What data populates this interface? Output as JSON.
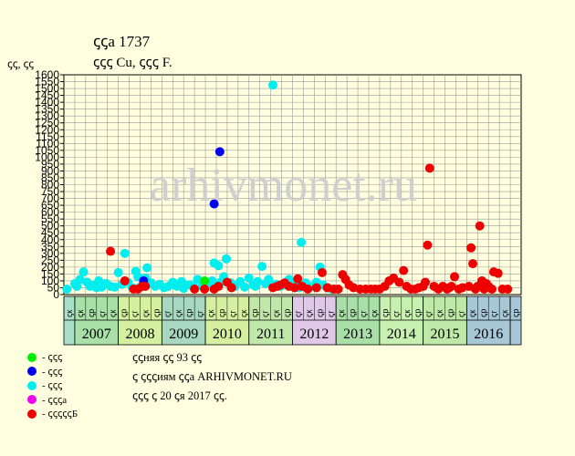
{
  "header": {
    "title": "ꞔꞔа 1737",
    "subtitle": "ꞔꞔꞔ Cu, ꞔꞔꞔ F.",
    "ylabel": "ꞔꞔ, ꞔꞔ"
  },
  "colors": {
    "background": "#ffffe0",
    "plot_background": "#ffffe0",
    "grid": "#999999",
    "watermark": "#cfcfcf"
  },
  "watermark": "arhivmonet.ru",
  "legend": [
    {
      "label": "- ꞔꞔꞔ",
      "color": "#00ee00"
    },
    {
      "label": "- ꞔꞔꞔ",
      "color": "#0000ee"
    },
    {
      "label": "- ꞔꞔꞔ",
      "color": "#00eeee"
    },
    {
      "label": "- ꞔꞔꞔа",
      "color": "#ee00ee"
    },
    {
      "label": "- ꞔꞔꞔꞔꞔБ",
      "color": "#ee0000"
    }
  ],
  "notes": [
    "ꞔꞔняя ꞔꞔ 93 ꞔꞔ",
    "ꞔ ꞔꞔꞔиям ꞔꞔа ARHIVMONET.RU",
    "ꞔꞔꞔ ꞔ 20 ꞔя 2017 ꞔꞔ."
  ],
  "chart_data": {
    "type": "scatter",
    "ylim": [
      0,
      1600
    ],
    "yticks": [
      0,
      50,
      100,
      150,
      200,
      250,
      300,
      350,
      400,
      450,
      500,
      550,
      600,
      650,
      700,
      750,
      800,
      850,
      900,
      950,
      1000,
      1050,
      1100,
      1150,
      1200,
      1250,
      1300,
      1350,
      1400,
      1450,
      1500,
      1550,
      1600
    ],
    "xlim": [
      2006.75,
      2017.25
    ],
    "quarter_labels": [
      "ꞔк",
      "ꞔк",
      "ꞔр",
      "ꞔг",
      "ꞔк",
      "ꞔр",
      "ꞔг",
      "ꞔк",
      "ꞔр",
      "ꞔг",
      "ꞔк",
      "ꞔр",
      "ꞔг",
      "ꞔк",
      "ꞔр",
      "ꞔг",
      "ꞔк",
      "ꞔр",
      "ꞔг",
      "ꞔк",
      "ꞔр",
      "ꞔг",
      "ꞔк",
      "ꞔр",
      "ꞔг",
      "ꞔк",
      "ꞔр",
      "ꞔг",
      "ꞔк",
      "ꞔр",
      "ꞔг",
      "ꞔк",
      "ꞔр",
      "ꞔг",
      "ꞔк",
      "ꞔр",
      "ꞔг",
      "ꞔк",
      "ꞔр",
      "ꞔг",
      "ꞔк",
      "ꞔр"
    ],
    "years": [
      {
        "label": "",
        "start": 2006.75,
        "end": 2007.0,
        "color": "#a8e0c8"
      },
      {
        "label": "2007",
        "start": 2007.0,
        "end": 2008.0,
        "color": "#a8e0a8"
      },
      {
        "label": "2008",
        "start": 2008.0,
        "end": 2009.0,
        "color": "#d4f0a0"
      },
      {
        "label": "2009",
        "start": 2009.0,
        "end": 2010.0,
        "color": "#a8d8c0"
      },
      {
        "label": "2010",
        "start": 2010.0,
        "end": 2011.0,
        "color": "#d4f0a0"
      },
      {
        "label": "2011",
        "start": 2011.0,
        "end": 2012.0,
        "color": "#c0e8a8"
      },
      {
        "label": "2012",
        "start": 2012.0,
        "end": 2013.0,
        "color": "#e0c8e8"
      },
      {
        "label": "2013",
        "start": 2013.0,
        "end": 2014.0,
        "color": "#a8e0a8"
      },
      {
        "label": "2014",
        "start": 2014.0,
        "end": 2015.0,
        "color": "#c8f0b0"
      },
      {
        "label": "2015",
        "start": 2015.0,
        "end": 2016.0,
        "color": "#c0e8a8"
      },
      {
        "label": "2016",
        "start": 2016.0,
        "end": 2017.0,
        "color": "#a8c8d8"
      },
      {
        "label": "",
        "start": 2017.0,
        "end": 2017.25,
        "color": "#a8c8d8"
      }
    ],
    "series": [
      {
        "color": "#00eeee",
        "points": [
          [
            2006.82,
            40
          ],
          [
            2007.0,
            80
          ],
          [
            2007.05,
            60
          ],
          [
            2007.12,
            110
          ],
          [
            2007.2,
            165
          ],
          [
            2007.28,
            90
          ],
          [
            2007.35,
            60
          ],
          [
            2007.45,
            70
          ],
          [
            2007.55,
            100
          ],
          [
            2007.62,
            55
          ],
          [
            2007.72,
            80
          ],
          [
            2007.82,
            60
          ],
          [
            2007.92,
            55
          ],
          [
            2008.0,
            160
          ],
          [
            2008.08,
            75
          ],
          [
            2008.15,
            300
          ],
          [
            2008.22,
            90
          ],
          [
            2008.32,
            50
          ],
          [
            2008.4,
            170
          ],
          [
            2008.45,
            130
          ],
          [
            2008.55,
            60
          ],
          [
            2008.63,
            120
          ],
          [
            2008.66,
            195
          ],
          [
            2008.75,
            85
          ],
          [
            2008.85,
            60
          ],
          [
            2008.95,
            75
          ],
          [
            2009.05,
            50
          ],
          [
            2009.15,
            60
          ],
          [
            2009.25,
            90
          ],
          [
            2009.35,
            60
          ],
          [
            2009.45,
            95
          ],
          [
            2009.55,
            70
          ],
          [
            2009.65,
            70
          ],
          [
            2009.72,
            55
          ],
          [
            2009.82,
            110
          ],
          [
            2009.92,
            60
          ],
          [
            2010.05,
            80
          ],
          [
            2010.15,
            100
          ],
          [
            2010.2,
            230
          ],
          [
            2010.3,
            210
          ],
          [
            2010.35,
            90
          ],
          [
            2010.42,
            130
          ],
          [
            2010.48,
            260
          ],
          [
            2010.58,
            85
          ],
          [
            2010.68,
            60
          ],
          [
            2010.8,
            95
          ],
          [
            2010.9,
            55
          ],
          [
            2011.0,
            120
          ],
          [
            2011.1,
            70
          ],
          [
            2011.2,
            95
          ],
          [
            2011.3,
            205
          ],
          [
            2011.38,
            80
          ],
          [
            2011.45,
            110
          ],
          [
            2011.55,
            1525
          ],
          [
            2011.62,
            75
          ],
          [
            2011.72,
            60
          ],
          [
            2011.82,
            70
          ],
          [
            2011.92,
            110
          ],
          [
            2012.05,
            80
          ],
          [
            2012.15,
            50
          ],
          [
            2012.2,
            380
          ],
          [
            2012.3,
            85
          ],
          [
            2012.45,
            60
          ],
          [
            2012.55,
            90
          ],
          [
            2012.63,
            200
          ],
          [
            2012.7,
            70
          ],
          [
            2012.8,
            50
          ],
          [
            2012.9,
            40
          ],
          [
            2007.5,
            50
          ],
          [
            2008.5,
            55
          ],
          [
            2009.5,
            45
          ],
          [
            2010.6,
            70
          ],
          [
            2011.15,
            60
          ],
          [
            2012.35,
            45
          ]
        ]
      },
      {
        "color": "#00ee00",
        "points": [
          [
            2009.98,
            100
          ]
        ]
      },
      {
        "color": "#0000ee",
        "points": [
          [
            2008.58,
            100
          ],
          [
            2010.2,
            660
          ],
          [
            2010.33,
            1040
          ]
        ]
      },
      {
        "color": "#ee0000",
        "points": [
          [
            2007.82,
            315
          ],
          [
            2008.15,
            100
          ],
          [
            2008.35,
            40
          ],
          [
            2008.45,
            40
          ],
          [
            2008.55,
            60
          ],
          [
            2008.62,
            60
          ],
          [
            2009.75,
            40
          ],
          [
            2009.98,
            40
          ],
          [
            2010.2,
            40
          ],
          [
            2010.3,
            60
          ],
          [
            2010.5,
            90
          ],
          [
            2010.6,
            50
          ],
          [
            2011.55,
            50
          ],
          [
            2011.65,
            60
          ],
          [
            2011.72,
            70
          ],
          [
            2011.82,
            85
          ],
          [
            2011.92,
            60
          ],
          [
            2012.05,
            50
          ],
          [
            2012.12,
            115
          ],
          [
            2012.22,
            60
          ],
          [
            2012.35,
            40
          ],
          [
            2012.55,
            50
          ],
          [
            2012.68,
            160
          ],
          [
            2012.8,
            50
          ],
          [
            2012.95,
            40
          ],
          [
            2013.05,
            40
          ],
          [
            2013.15,
            145
          ],
          [
            2013.22,
            110
          ],
          [
            2013.3,
            70
          ],
          [
            2013.4,
            50
          ],
          [
            2013.55,
            40
          ],
          [
            2013.68,
            40
          ],
          [
            2013.8,
            40
          ],
          [
            2013.9,
            40
          ],
          [
            2014.0,
            40
          ],
          [
            2014.12,
            60
          ],
          [
            2014.22,
            100
          ],
          [
            2014.32,
            120
          ],
          [
            2014.45,
            90
          ],
          [
            2014.55,
            175
          ],
          [
            2014.62,
            60
          ],
          [
            2014.72,
            40
          ],
          [
            2014.82,
            40
          ],
          [
            2014.9,
            50
          ],
          [
            2015.0,
            60
          ],
          [
            2015.05,
            90
          ],
          [
            2015.1,
            360
          ],
          [
            2015.15,
            920
          ],
          [
            2015.25,
            60
          ],
          [
            2015.35,
            40
          ],
          [
            2015.45,
            60
          ],
          [
            2015.55,
            40
          ],
          [
            2015.65,
            60
          ],
          [
            2015.72,
            130
          ],
          [
            2015.82,
            40
          ],
          [
            2015.9,
            50
          ],
          [
            2016.05,
            60
          ],
          [
            2016.1,
            340
          ],
          [
            2016.14,
            225
          ],
          [
            2016.2,
            40
          ],
          [
            2016.25,
            60
          ],
          [
            2016.3,
            500
          ],
          [
            2016.35,
            100
          ],
          [
            2016.45,
            80
          ],
          [
            2016.5,
            60
          ],
          [
            2016.58,
            40
          ],
          [
            2016.62,
            165
          ],
          [
            2016.72,
            155
          ],
          [
            2016.82,
            40
          ],
          [
            2016.94,
            40
          ],
          [
            2016.4,
            40
          ],
          [
            2015.6,
            50
          ]
        ]
      }
    ]
  }
}
